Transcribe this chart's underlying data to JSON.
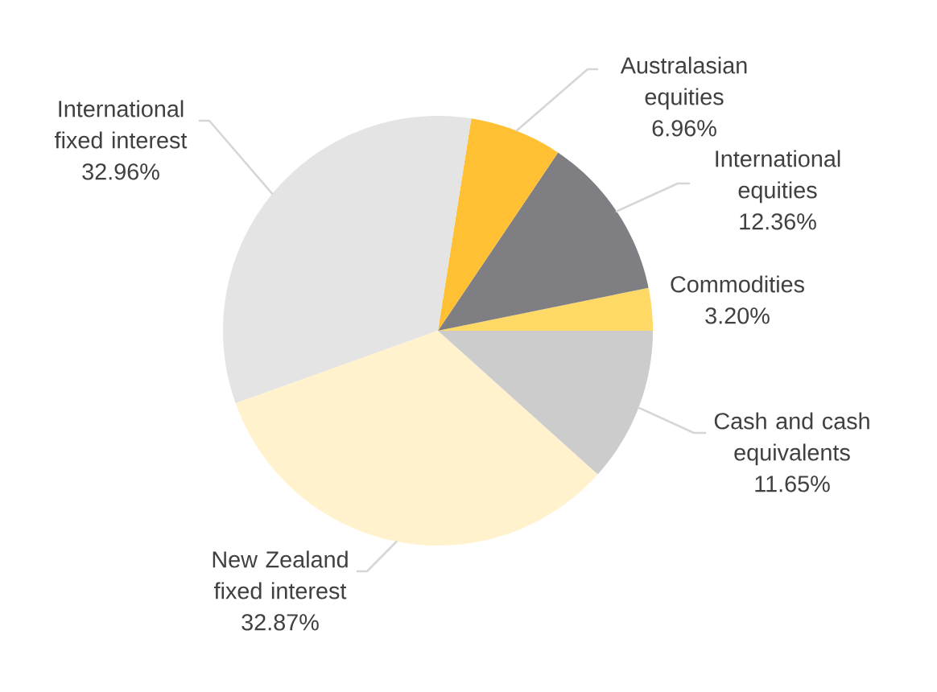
{
  "chart_data": {
    "type": "pie",
    "categories": [
      "Commodities",
      "International equities",
      "Australasian equities",
      "International fixed interest",
      "New Zealand fixed interest",
      "Cash and cash equivalents"
    ],
    "values": [
      3.2,
      12.36,
      6.96,
      32.96,
      32.87,
      11.65
    ],
    "colors": [
      "#ffd966",
      "#7f7f83",
      "#ffc133",
      "#e4e4e4",
      "#fff2cc",
      "#cccccc"
    ],
    "value_labels": [
      "3.20%",
      "12.36%",
      "6.96%",
      "32.96%",
      "32.87%",
      "11.65%"
    ]
  }
}
